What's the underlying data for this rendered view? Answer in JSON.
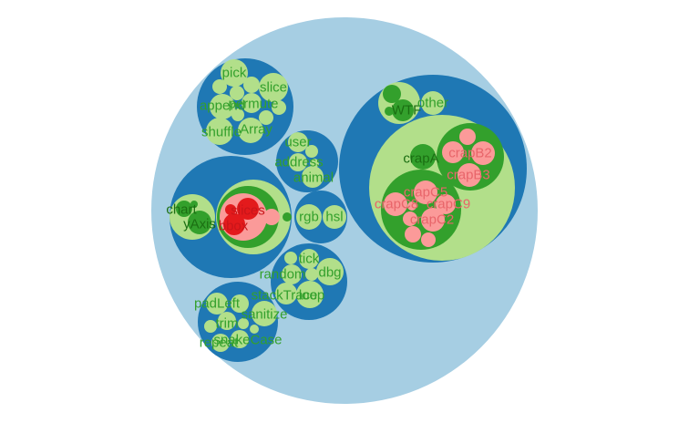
{
  "chart_data": {
    "type": "circle-packing",
    "colors": {
      "root": "#a6cee3",
      "group": "#1f78b4",
      "leaf_green": "#b2df8a",
      "leaf_dark_green": "#33a02c",
      "leaf_pink": "#fb9a99",
      "leaf_red": "#e31a1c",
      "label_green": "#33a02c",
      "label_dark": "#1b6e12",
      "label_pink": "#e8656a",
      "label_red": "#c8151a"
    },
    "labels": {
      "pick": "pick",
      "slice": "slice",
      "append": "append",
      "permute": "permute",
      "shuffle": "shuffle",
      "array": "Array",
      "user": "user",
      "address": "address",
      "animal": "animal",
      "wtf": "WTF",
      "other": "other",
      "crapa": "crapA",
      "crapb2": "crapB2",
      "crapb3": "crapB3",
      "crapc2": "crapC2",
      "crapc5": "crapC5",
      "crapc8": "crapC8",
      "crapc9": "crapC9",
      "chart": "chart",
      "yaxis": "yAxis",
      "slices": "slices",
      "bbox": "bbox",
      "rgb": "rgb",
      "hsl": "hsl",
      "tick": "tick",
      "random": "random",
      "dbg": "dbg",
      "stacktrace": "stackTrace",
      "loop": "loop",
      "padleft": "padLeft",
      "trim": "trim",
      "sanitize": "sanitize",
      "repeat": "repeat",
      "snakecase": "snakeCase"
    }
  }
}
